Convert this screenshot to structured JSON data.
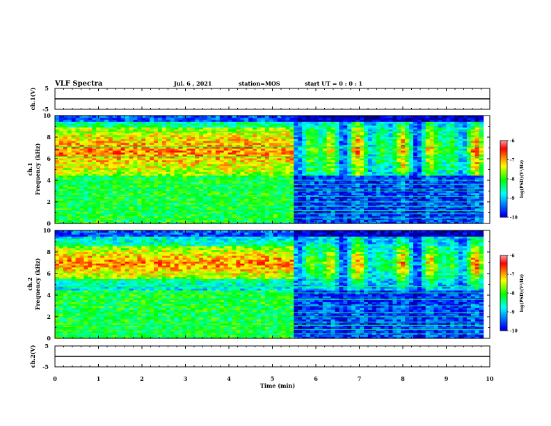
{
  "chart_data": {
    "type": "heatmap",
    "header": {
      "title": "VLF Spectra",
      "date": "Jul. 6 , 2021",
      "station": "station=MOS",
      "start_ut": "start UT = 0 : 0 : 1"
    },
    "x_axis": {
      "label": "Time (min)",
      "range": [
        0,
        10
      ],
      "ticks": [
        "0",
        "1",
        "2",
        "3",
        "4",
        "5",
        "6",
        "7",
        "8",
        "9",
        "10"
      ]
    },
    "data_end_min": 9.85,
    "panels": [
      {
        "kind": "waveform",
        "ylabel": "ch.1(V)",
        "ylim": [
          -5,
          5
        ],
        "yticks": [
          "5",
          "-5"
        ],
        "baseline": 0
      },
      {
        "kind": "spectrogram",
        "ylabel_line1": "ch.1",
        "ylabel_line2": "Frequency (kHz)",
        "ylim": [
          0,
          10
        ],
        "yticks": [
          "0",
          "2",
          "4",
          "6",
          "8",
          "10"
        ],
        "colorbar": {
          "label": "log(PSD)(V²/Hz)",
          "range": [
            -10,
            -6
          ],
          "ticks": [
            "-6",
            "-7",
            "-8",
            "-9",
            "-10"
          ]
        },
        "regime_change_min": 5.45,
        "intense_band_khz": [
          4.5,
          9.0
        ],
        "tones_khz": [
          0.5,
          0.9,
          1.2,
          1.6,
          2.0,
          2.5,
          3.0,
          3.2,
          3.6,
          4.0,
          6.2,
          7.1,
          8.5
        ]
      },
      {
        "kind": "spectrogram",
        "ylabel_line1": "ch.2",
        "ylabel_line2": "Frequency (kHz)",
        "ylim": [
          0,
          10
        ],
        "yticks": [
          "0",
          "2",
          "4",
          "6",
          "8",
          "10"
        ],
        "colorbar": {
          "label": "log(PSD)(V²/Hz)",
          "range": [
            -10,
            -6
          ],
          "ticks": [
            "-6",
            "-7",
            "-8",
            "-9",
            "-10"
          ]
        },
        "regime_change_min": 5.45,
        "intense_band_khz": [
          5.5,
          8.5
        ],
        "tones_khz": [
          0.4,
          0.8,
          1.2,
          1.5,
          2.0,
          2.4,
          3.0,
          3.6,
          4.2,
          4.8
        ]
      },
      {
        "kind": "waveform",
        "ylabel": "ch.2(V)",
        "ylim": [
          -5,
          5
        ],
        "yticks": [
          "5",
          "-5"
        ],
        "baseline": 0
      }
    ]
  }
}
